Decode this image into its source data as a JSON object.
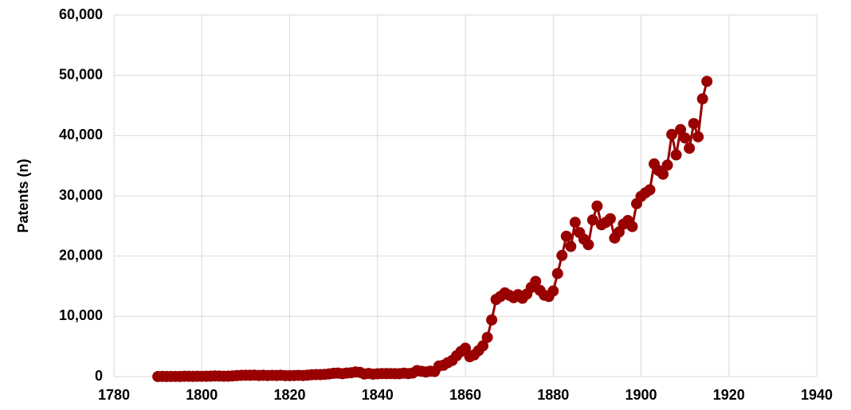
{
  "chart_data": {
    "type": "line",
    "y_label": "Patents (n)",
    "x": [
      1790,
      1791,
      1792,
      1793,
      1794,
      1795,
      1796,
      1797,
      1798,
      1799,
      1800,
      1801,
      1802,
      1803,
      1804,
      1805,
      1806,
      1807,
      1808,
      1809,
      1810,
      1811,
      1812,
      1813,
      1814,
      1815,
      1816,
      1817,
      1818,
      1819,
      1820,
      1821,
      1822,
      1823,
      1824,
      1825,
      1826,
      1827,
      1828,
      1829,
      1830,
      1831,
      1832,
      1833,
      1834,
      1835,
      1836,
      1837,
      1838,
      1839,
      1840,
      1841,
      1842,
      1843,
      1844,
      1845,
      1846,
      1847,
      1848,
      1849,
      1850,
      1851,
      1852,
      1853,
      1854,
      1855,
      1856,
      1857,
      1858,
      1859,
      1860,
      1861,
      1862,
      1863,
      1864,
      1865,
      1866,
      1867,
      1868,
      1869,
      1870,
      1871,
      1872,
      1873,
      1874,
      1875,
      1876,
      1877,
      1878,
      1879,
      1880,
      1881,
      1882,
      1883,
      1884,
      1885,
      1886,
      1887,
      1888,
      1889,
      1890,
      1891,
      1892,
      1893,
      1894,
      1895,
      1896,
      1897,
      1898,
      1899,
      1900,
      1901,
      1902,
      1903,
      1904,
      1905,
      1906,
      1907,
      1908,
      1909,
      1910,
      1911,
      1912,
      1913,
      1914,
      1915
    ],
    "series": [
      {
        "name": "Patents",
        "color": "#990000",
        "values": [
          3,
          33,
          11,
          20,
          22,
          12,
          44,
          51,
          28,
          44,
          41,
          44,
          65,
          97,
          84,
          57,
          63,
          99,
          158,
          203,
          223,
          215,
          238,
          181,
          210,
          173,
          206,
          174,
          222,
          156,
          155,
          168,
          200,
          173,
          228,
          304,
          323,
          331,
          368,
          447,
          544,
          573,
          474,
          586,
          630,
          752,
          702,
          426,
          514,
          404,
          458,
          490,
          488,
          493,
          478,
          473,
          566,
          495,
          583,
          984,
          883,
          752,
          885,
          844,
          1755,
          1881,
          2302,
          2674,
          3455,
          4160,
          4700,
          3300,
          3600,
          4300,
          5100,
          6500,
          9400,
          12800,
          13300,
          13900,
          13500,
          13100,
          13600,
          13000,
          13700,
          14800,
          15800,
          14300,
          13500,
          13300,
          14200,
          17100,
          20100,
          23300,
          21600,
          25600,
          23900,
          22800,
          21900,
          26000,
          28300,
          25200,
          25600,
          26200,
          23000,
          24000,
          25300,
          25900,
          24900,
          28700,
          29900,
          30500,
          31000,
          35300,
          34200,
          33600,
          35100,
          40200,
          36800,
          41000,
          39600,
          37900,
          42000,
          39800,
          46100,
          49000
        ]
      }
    ],
    "xlim": [
      1780,
      1940
    ],
    "xticks": [
      1780,
      1800,
      1820,
      1840,
      1860,
      1880,
      1900,
      1920,
      1940
    ],
    "ylim": [
      0,
      60000
    ],
    "yticks": [
      0,
      {
        "value": 10000,
        "label": "10,000"
      },
      {
        "value": 20000,
        "label": "20,000"
      },
      {
        "value": 30000,
        "label": "30,000"
      },
      {
        "value": 40000,
        "label": "40,000"
      },
      {
        "value": 50000,
        "label": "50,000"
      },
      {
        "value": 60000,
        "label": "60,000"
      }
    ],
    "grid": true
  }
}
